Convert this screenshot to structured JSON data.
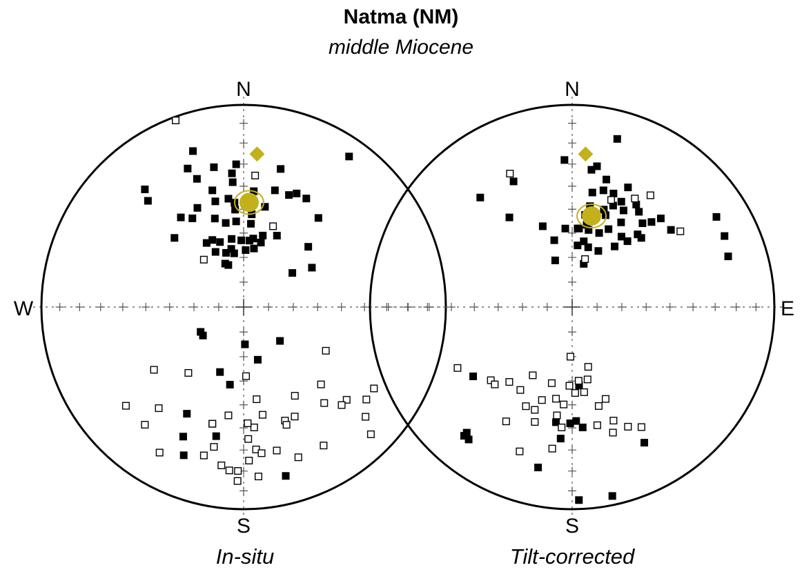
{
  "title": "Natma (NM)",
  "subtitle": "middle Miocene",
  "colors": {
    "mean": "#c2b11b",
    "vgp": "#c2b11b",
    "down": "#000000",
    "up": "#ffffff",
    "outline": "#000000"
  },
  "chart_data": [
    {
      "type": "scatter",
      "projection": "equal-area stereonet",
      "caption": "In-situ",
      "cardinals": {
        "north": "N",
        "south": "S",
        "west": "W"
      },
      "lower_hemisphere": [
        [
          -20,
          72
        ],
        [
          -23,
          71
        ],
        [
          -10,
          68
        ],
        [
          2,
          67
        ],
        [
          10,
          66
        ],
        [
          15,
          63
        ],
        [
          -27,
          65
        ],
        [
          -18,
          67
        ],
        [
          -12,
          66
        ],
        [
          -30,
          60
        ],
        [
          -25,
          60
        ],
        [
          -20,
          62
        ],
        [
          -10,
          62
        ],
        [
          -2,
          63
        ],
        [
          5,
          63
        ],
        [
          15,
          60
        ],
        [
          25,
          58
        ],
        [
          5,
          56
        ],
        [
          -5,
          55
        ],
        [
          -12,
          55
        ],
        [
          -18,
          52
        ],
        [
          -5,
          50
        ],
        [
          2,
          48
        ],
        [
          12,
          48
        ],
        [
          -30,
          48
        ],
        [
          -35,
          45
        ],
        [
          -25,
          45
        ],
        [
          -15,
          45
        ],
        [
          -8,
          45
        ],
        [
          -45,
          50
        ],
        [
          -15,
          40
        ],
        [
          -5,
          38
        ],
        [
          5,
          42
        ],
        [
          15,
          40
        ],
        [
          25,
          38
        ],
        [
          22,
          40
        ],
        [
          -20,
          33
        ],
        [
          -12,
          30
        ],
        [
          -3,
          30
        ],
        [
          -22,
          27
        ],
        [
          -40,
          25
        ],
        [
          -18,
          20
        ],
        [
          40,
          42
        ],
        [
          47,
          54
        ],
        [
          60,
          58
        ],
        [
          55,
          66
        ],
        [
          -42,
          30
        ],
        [
          -5,
          47
        ],
        [
          5,
          52
        ],
        [
          8,
          62
        ],
        [
          30,
          38
        ],
        [
          15,
          30
        ],
        [
          -5,
          34
        ],
        [
          35,
          10
        ],
        [
          -155,
          30
        ],
        [
          -170,
          58
        ],
        [
          178,
          75
        ],
        [
          165,
          68
        ],
        [
          -152,
          40
        ],
        [
          -165,
          40
        ],
        [
          -168,
          35
        ],
        [
          -125,
          70
        ],
        [
          -160,
          62
        ],
        [
          133,
          70
        ],
        [
          -120,
          70
        ],
        [
          -158,
          22
        ],
        [
          166,
          15
        ]
      ],
      "upper_hemisphere": [
        [
          -175,
          20
        ],
        [
          -140,
          55
        ],
        [
          -165,
          40
        ],
        [
          -125,
          45
        ],
        [
          -130,
          25
        ],
        [
          -168,
          30
        ],
        [
          -140,
          25
        ],
        [
          167,
          28
        ],
        [
          160,
          40
        ],
        [
          150,
          48
        ],
        [
          135,
          45
        ],
        [
          140,
          38
        ],
        [
          132,
          32
        ],
        [
          118,
          52
        ],
        [
          127,
          25
        ],
        [
          132,
          20
        ],
        [
          135,
          12
        ],
        [
          122,
          25
        ],
        [
          150,
          22
        ],
        [
          135,
          32
        ],
        [
          -140,
          35
        ],
        [
          -172,
          22
        ],
        [
          178,
          35
        ],
        [
          175,
          40
        ],
        [
          172,
          52
        ],
        [
          175,
          30
        ],
        [
          170,
          45
        ],
        [
          155,
          40
        ],
        [
          -165,
          25
        ],
        [
          -20,
          2
        ],
        [
          -40,
          65
        ],
        [
          5,
          35
        ],
        [
          20,
          55
        ],
        [
          160,
          38
        ],
        [
          173,
          28
        ],
        [
          178,
          62
        ],
        [
          178,
          42
        ],
        [
          -178,
          20
        ],
        [
          175,
          17
        ],
        [
          -178,
          15
        ],
        [
          -150,
          18
        ],
        [
          178,
          25
        ],
        [
          160,
          22
        ],
        [
          -172,
          45
        ]
      ],
      "mean": {
        "dec": 3,
        "inc": 47
      },
      "vgp_pole": {
        "dec": 5,
        "inc": 25
      }
    },
    {
      "type": "scatter",
      "projection": "equal-area stereonet",
      "caption": "Tilt-corrected",
      "cardinals": {
        "north": "N",
        "south": "S",
        "east": "E"
      },
      "lower_hemisphere": [
        [
          -35,
          45
        ],
        [
          -20,
          55
        ],
        [
          -15,
          62
        ],
        [
          -5,
          58
        ],
        [
          5,
          58
        ],
        [
          10,
          63
        ],
        [
          15,
          72
        ],
        [
          25,
          65
        ],
        [
          35,
          55
        ],
        [
          20,
          58
        ],
        [
          15,
          65
        ],
        [
          25,
          55
        ],
        [
          35,
          60
        ],
        [
          40,
          55
        ],
        [
          45,
          50
        ],
        [
          45,
          38
        ],
        [
          52,
          38
        ],
        [
          20,
          50
        ],
        [
          30,
          50
        ],
        [
          22,
          45
        ],
        [
          28,
          45
        ],
        [
          35,
          42
        ],
        [
          43,
          42
        ],
        [
          42,
          50
        ],
        [
          32,
          40
        ],
        [
          40,
          45
        ],
        [
          12,
          58
        ],
        [
          10,
          48
        ],
        [
          18,
          48
        ],
        [
          25,
          42
        ],
        [
          15,
          40
        ],
        [
          10,
          42
        ],
        [
          8,
          52
        ],
        [
          10,
          56
        ],
        [
          4,
          58
        ],
        [
          15,
          52
        ],
        [
          20,
          40
        ],
        [
          15,
          35
        ],
        [
          10,
          30
        ],
        [
          8,
          32
        ],
        [
          25,
          35
        ],
        [
          5,
          65
        ],
        [
          -3,
          28
        ],
        [
          15,
          15
        ],
        [
          58,
          17
        ],
        [
          65,
          18
        ],
        [
          72,
          20
        ],
        [
          -40,
          30
        ],
        [
          -25,
          32
        ],
        [
          -20,
          70
        ],
        [
          -125,
          40
        ],
        [
          -140,
          20
        ],
        [
          -140,
          18
        ],
        [
          -142,
          18
        ],
        [
          -168,
          20
        ],
        [
          178,
          5
        ],
        [
          168,
          5
        ],
        [
          -175,
          35
        ],
        [
          178,
          43
        ],
        [
          175,
          40
        ],
        [
          175,
          58
        ],
        [
          -172,
          42
        ],
        [
          152,
          25
        ],
        [
          -179,
          42
        ]
      ],
      "upper_hemisphere": [
        [
          -25,
          28
        ],
        [
          15,
          70
        ],
        [
          20,
          43
        ],
        [
          30,
          38
        ],
        [
          55,
          35
        ],
        [
          35,
          33
        ],
        [
          -172,
          45
        ],
        [
          -178,
          70
        ],
        [
          -150,
          58
        ],
        [
          -148,
          50
        ],
        [
          -140,
          50
        ],
        [
          -160,
          25
        ],
        [
          -175,
          50
        ],
        [
          -162,
          50
        ],
        [
          -160,
          45
        ],
        [
          -155,
          45
        ],
        [
          -162,
          40
        ],
        [
          -175,
          40
        ],
        [
          -172,
          30
        ],
        [
          -150,
          35
        ],
        [
          160,
          50
        ],
        [
          165,
          48
        ],
        [
          172,
          55
        ],
        [
          175,
          60
        ],
        [
          165,
          65
        ],
        [
          168,
          60
        ],
        [
          -178,
          58
        ],
        [
          178,
          55
        ],
        [
          -165,
          58
        ],
        [
          -170,
          52
        ],
        [
          168,
          40
        ],
        [
          160,
          40
        ],
        [
          162,
          35
        ],
        [
          155,
          35
        ],
        [
          150,
          32
        ],
        [
          -132,
          45
        ],
        [
          -135,
          45
        ],
        [
          -118,
          36
        ]
      ],
      "mean": {
        "dec": 12,
        "inc": 52
      },
      "vgp_pole": {
        "dec": 5,
        "inc": 25
      }
    }
  ]
}
